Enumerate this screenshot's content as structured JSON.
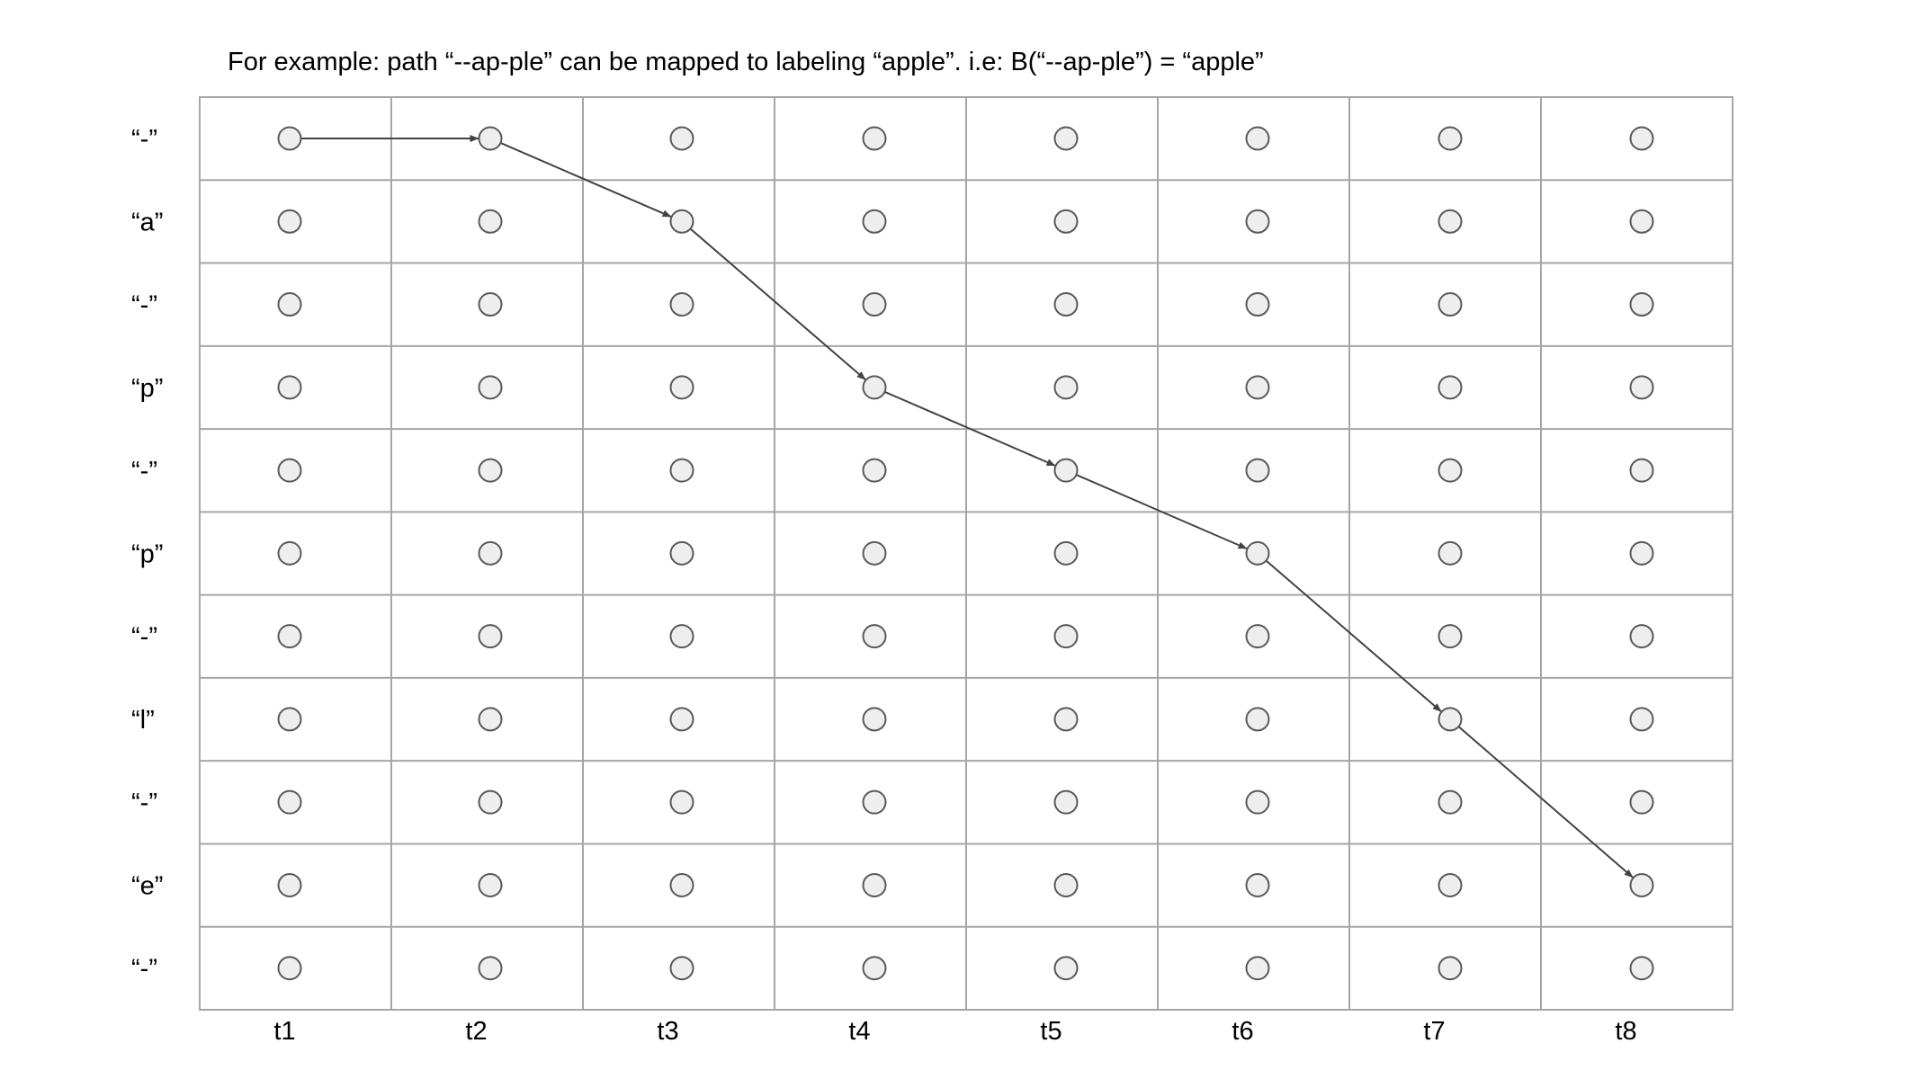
{
  "caption": "For example: path “--ap-ple” can be mapped to labeling “apple”. i.e: B(“--ap-ple”) = “apple”",
  "row_labels": [
    "“-”",
    "“a”",
    "“-”",
    "“p”",
    "“-”",
    "“p”",
    "“-”",
    "“l”",
    "“-”",
    "“e”",
    "“-”"
  ],
  "column_labels": [
    "t1",
    "t2",
    "t3",
    "t4",
    "t5",
    "t6",
    "t7",
    "t8"
  ],
  "path": [
    {
      "time": "t1",
      "row": 0
    },
    {
      "time": "t2",
      "row": 0
    },
    {
      "time": "t3",
      "row": 1
    },
    {
      "time": "t4",
      "row": 3
    },
    {
      "time": "t5",
      "row": 4
    },
    {
      "time": "t6",
      "row": 5
    },
    {
      "time": "t7",
      "row": 7
    },
    {
      "time": "t8",
      "row": 9
    }
  ],
  "colors": {
    "grid": "#a6a6a6",
    "node_fill": "#eeeeee",
    "node_stroke": "#595959",
    "path": "#434343",
    "text": "#000000"
  }
}
